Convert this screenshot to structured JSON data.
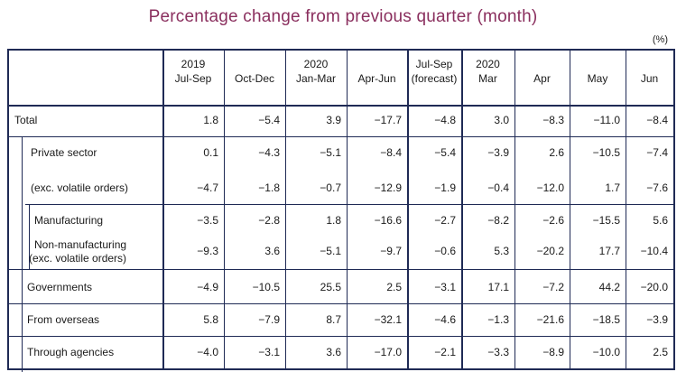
{
  "title": "Percentage change from previous quarter (month)",
  "unit": "(%)",
  "columns": [
    {
      "line1": "2019",
      "line2": "Jul-Sep"
    },
    {
      "line1": "",
      "line2": "Oct-Dec"
    },
    {
      "line1": "2020",
      "line2": "Jan-Mar"
    },
    {
      "line1": "",
      "line2": "Apr-Jun"
    },
    {
      "line1": "Jul-Sep",
      "line2": "(forecast)"
    },
    {
      "line1": "2020",
      "line2": "Mar"
    },
    {
      "line1": "",
      "line2": "Apr"
    },
    {
      "line1": "",
      "line2": "May"
    },
    {
      "line1": "",
      "line2": "Jun"
    }
  ],
  "rows": [
    {
      "label": "Total",
      "label2": "",
      "values": [
        "1.8",
        "−5.4",
        "3.9",
        "−17.7",
        "−4.8",
        "3.0",
        "−8.3",
        "−11.0",
        "−8.4"
      ]
    },
    {
      "label": "Private sector",
      "label2": "",
      "values": [
        "0.1",
        "−4.3",
        "−5.1",
        "−8.4",
        "−5.4",
        "−3.9",
        "2.6",
        "−10.5",
        "−7.4"
      ]
    },
    {
      "label": "(exc. volatile orders)",
      "label2": "",
      "values": [
        "−4.7",
        "−1.8",
        "−0.7",
        "−12.9",
        "−1.9",
        "−0.4",
        "−12.0",
        "1.7",
        "−7.6"
      ]
    },
    {
      "label": "Manufacturing",
      "label2": "",
      "values": [
        "−3.5",
        "−2.8",
        "1.8",
        "−16.6",
        "−2.7",
        "−8.2",
        "−2.6",
        "−15.5",
        "5.6"
      ]
    },
    {
      "label": "Non-manufacturing",
      "label2": "(exc. volatile orders)",
      "values": [
        "−9.3",
        "3.6",
        "−5.1",
        "−9.7",
        "−0.6",
        "5.3",
        "−20.2",
        "17.7",
        "−10.4"
      ]
    },
    {
      "label": "Governments",
      "label2": "",
      "values": [
        "−4.9",
        "−10.5",
        "25.5",
        "2.5",
        "−3.1",
        "17.1",
        "−7.2",
        "44.2",
        "−20.0"
      ]
    },
    {
      "label": "From overseas",
      "label2": "",
      "values": [
        "5.8",
        "−7.9",
        "8.7",
        "−32.1",
        "−4.6",
        "−1.3",
        "−21.6",
        "−18.5",
        "−3.9"
      ]
    },
    {
      "label": "Through agencies",
      "label2": "",
      "values": [
        "−4.0",
        "−3.1",
        "3.6",
        "−17.0",
        "−2.1",
        "−3.3",
        "−8.9",
        "−10.0",
        "2.5"
      ]
    }
  ]
}
